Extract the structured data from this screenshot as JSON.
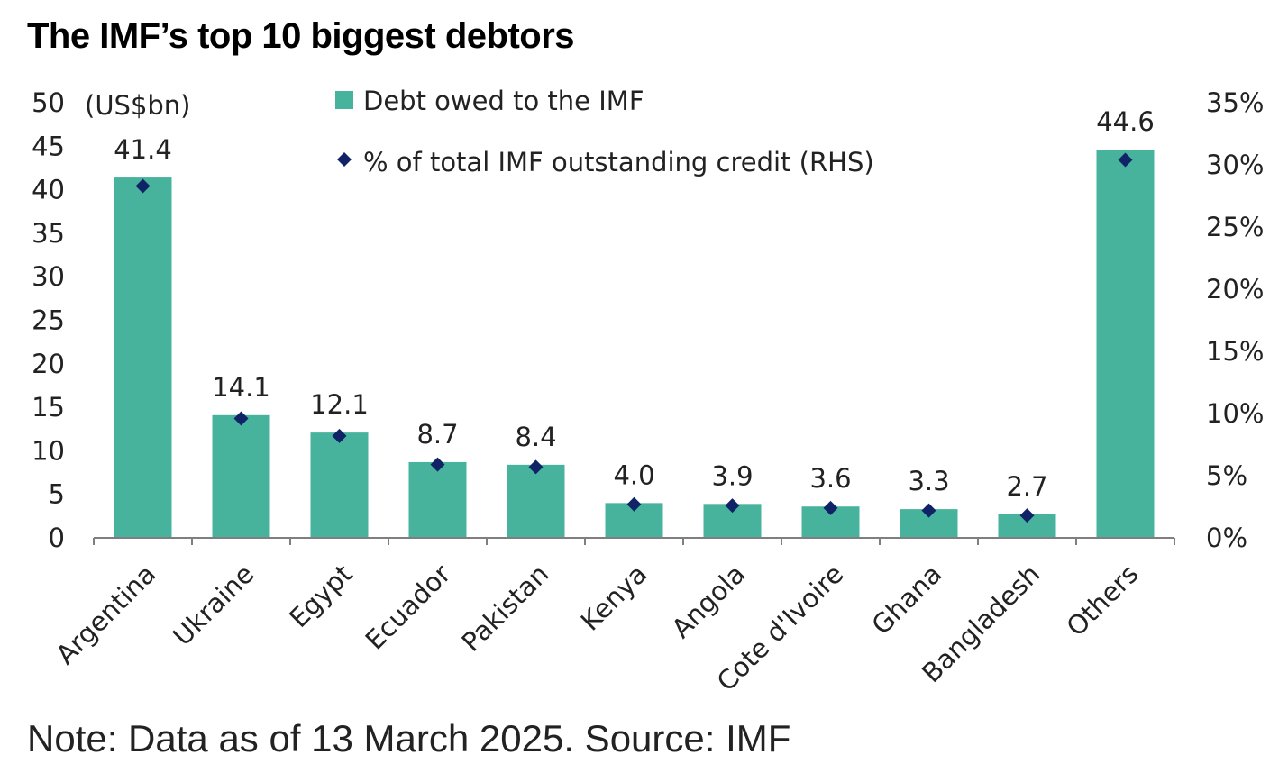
{
  "title": "The IMF’s top 10 biggest debtors",
  "note": "Note: Data as of 13 March 2025. Source: IMF",
  "chart_data": {
    "type": "bar",
    "categories": [
      "Argentina",
      "Ukraine",
      "Egypt",
      "Ecuador",
      "Pakistan",
      "Kenya",
      "Angola",
      "Cote d'Ivoire",
      "Ghana",
      "Bangladesh",
      "Others"
    ],
    "series": [
      {
        "name": "Debt owed to the IMF",
        "type": "bar",
        "axis": "left",
        "color": "#47b39d",
        "values": [
          41.4,
          14.1,
          12.1,
          8.7,
          8.4,
          4.0,
          3.9,
          3.6,
          3.3,
          2.7,
          44.6
        ],
        "labels": [
          "41.4",
          "14.1",
          "12.1",
          "8.7",
          "8.4",
          "4.0",
          "3.9",
          "3.6",
          "3.3",
          "2.7",
          "44.6"
        ]
      },
      {
        "name": "% of total IMF outstanding credit (RHS)",
        "type": "scatter",
        "marker": "diamond",
        "axis": "right",
        "color": "#0f2366",
        "values": [
          28.3,
          9.6,
          8.2,
          5.9,
          5.7,
          2.7,
          2.6,
          2.4,
          2.2,
          1.8,
          30.4
        ]
      }
    ],
    "ylabel": "(US$bn)",
    "ylim": [
      0,
      50
    ],
    "yticks": [
      "0",
      "5",
      "10",
      "15",
      "20",
      "25",
      "30",
      "35",
      "40",
      "45",
      "50"
    ],
    "y2lim": [
      0,
      35
    ],
    "y2ticks": [
      "0%",
      "5%",
      "10%",
      "15%",
      "20%",
      "25%",
      "30%",
      "35%"
    ],
    "grid": false,
    "legend_position": "top-center"
  }
}
